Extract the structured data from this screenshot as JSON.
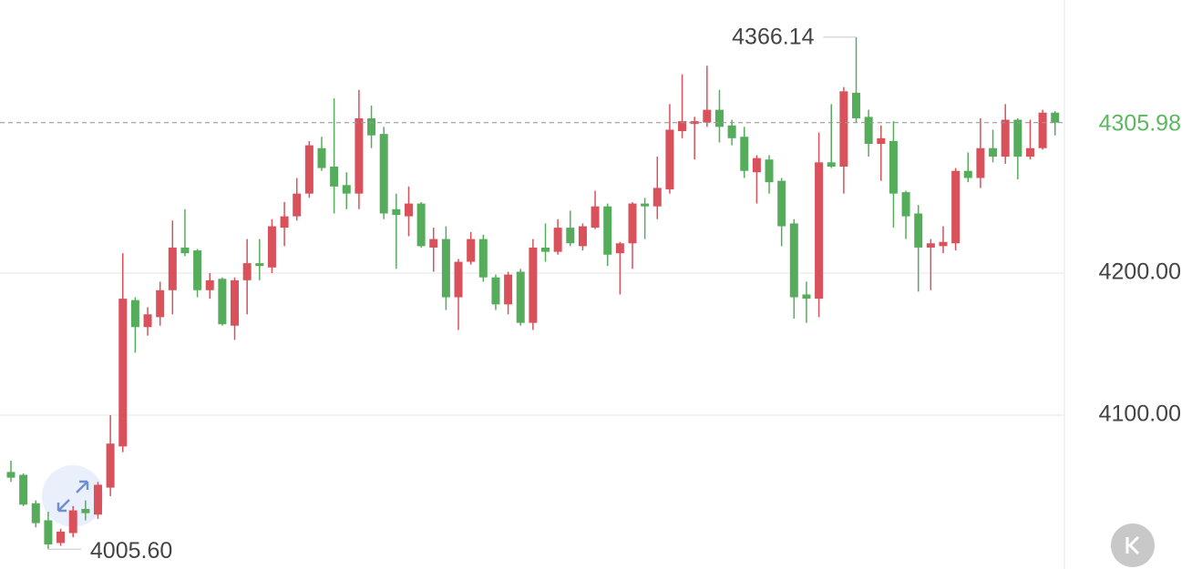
{
  "chart_data": {
    "type": "candlestick",
    "up_color": "#d9515a",
    "down_color": "#55ad5c",
    "ylim": [
      3991.7,
      4392.3
    ],
    "yticks": [
      {
        "value": 4200,
        "label": "4200.00"
      },
      {
        "value": 4100,
        "label": "4100.00"
      }
    ],
    "grid": true,
    "last_price": {
      "value": 4305.98,
      "label": "4305.98",
      "color": "#5cb860"
    },
    "annotations": [
      {
        "value": 4366.14,
        "label": "4366.14"
      },
      {
        "value": 4005.6,
        "label": "4005.60"
      }
    ],
    "open": [
      4060,
      4058,
      4038,
      4026,
      4010,
      4017,
      4034,
      4030,
      4049,
      4078,
      4181,
      4162,
      4169,
      4188,
      4218,
      4216,
      4188,
      4196,
      4163,
      4195,
      4207,
      4204,
      4232,
      4240,
      4256,
      4288,
      4275,
      4262,
      4256,
      4309,
      4298,
      4245,
      4240,
      4249,
      4218,
      4224,
      4183,
      4208,
      4224,
      4197,
      4178,
      4201,
      4165,
      4218,
      4215,
      4232,
      4219,
      4232,
      4247,
      4214,
      4221,
      4249,
      4247,
      4259,
      4300,
      4305,
      4306,
      4315,
      4304,
      4296,
      4271,
      4280,
      4265,
      4235,
      4185,
      4182,
      4278,
      4275,
      4327,
      4310,
      4291,
      4293,
      4257,
      4242,
      4218,
      4219,
      4221,
      4272,
      4267,
      4288,
      4282,
      4308,
      4282,
      4288,
      4313
    ],
    "high": [
      4068,
      4059,
      4040,
      4032,
      4020,
      4036,
      4040,
      4053,
      4100,
      4214,
      4183,
      4176,
      4194,
      4237,
      4245,
      4217,
      4200,
      4197,
      4197,
      4224,
      4224,
      4238,
      4250,
      4267,
      4293,
      4296,
      4323,
      4271,
      4329,
      4318,
      4303,
      4256,
      4261,
      4250,
      4232,
      4233,
      4210,
      4229,
      4227,
      4199,
      4201,
      4203,
      4224,
      4235,
      4238,
      4244,
      4235,
      4258,
      4249,
      4222,
      4250,
      4253,
      4282,
      4319,
      4340,
      4310,
      4346,
      4329,
      4308,
      4303,
      4283,
      4283,
      4267,
      4238,
      4194,
      4299,
      4319,
      4331,
      4366.14,
      4315,
      4304,
      4307,
      4258,
      4248,
      4224,
      4233,
      4274,
      4285,
      4309,
      4301,
      4319,
      4309,
      4308,
      4315,
      4314
    ],
    "low": [
      4053,
      4036,
      4021,
      4005.6,
      4008,
      4014,
      4026,
      4027,
      4043,
      4074,
      4144,
      4156,
      4163,
      4171,
      4212,
      4183,
      4182,
      4163,
      4153,
      4171,
      4195,
      4200,
      4219,
      4237,
      4253,
      4272,
      4242,
      4245,
      4245,
      4288,
      4238,
      4203,
      4226,
      4218,
      4201,
      4174,
      4160,
      4206,
      4194,
      4174,
      4171,
      4163,
      4160,
      4208,
      4213,
      4219,
      4216,
      4231,
      4205,
      4185,
      4203,
      4224,
      4238,
      4256,
      4295,
      4280,
      4303,
      4292,
      4290,
      4267,
      4249,
      4256,
      4219,
      4168,
      4165,
      4169,
      4274,
      4256,
      4306,
      4282,
      4265,
      4232,
      4224,
      4187,
      4188,
      4214,
      4216,
      4264,
      4260,
      4278,
      4277,
      4266,
      4280,
      4287,
      4297
    ],
    "close": [
      4056,
      4037,
      4024,
      4009,
      4018,
      4033,
      4031,
      4051,
      4080,
      4182,
      4162,
      4171,
      4188,
      4218,
      4214,
      4188,
      4195,
      4164,
      4195,
      4207,
      4205,
      4233,
      4240,
      4256,
      4290,
      4274,
      4261,
      4256,
      4309,
      4297,
      4242,
      4241,
      4249,
      4219,
      4224,
      4183,
      4208,
      4224,
      4197,
      4178,
      4199,
      4165,
      4218,
      4215,
      4232,
      4221,
      4233,
      4247,
      4213,
      4221,
      4249,
      4247,
      4260,
      4301,
      4307,
      4307,
      4315,
      4303,
      4295,
      4272,
      4281,
      4264,
      4233,
      4183,
      4182,
      4278,
      4275,
      4328,
      4309,
      4291,
      4295,
      4256,
      4240,
      4218,
      4221,
      4222,
      4272,
      4267,
      4288,
      4282,
      4308,
      4282,
      4288,
      4313,
      4305.98
    ]
  }
}
